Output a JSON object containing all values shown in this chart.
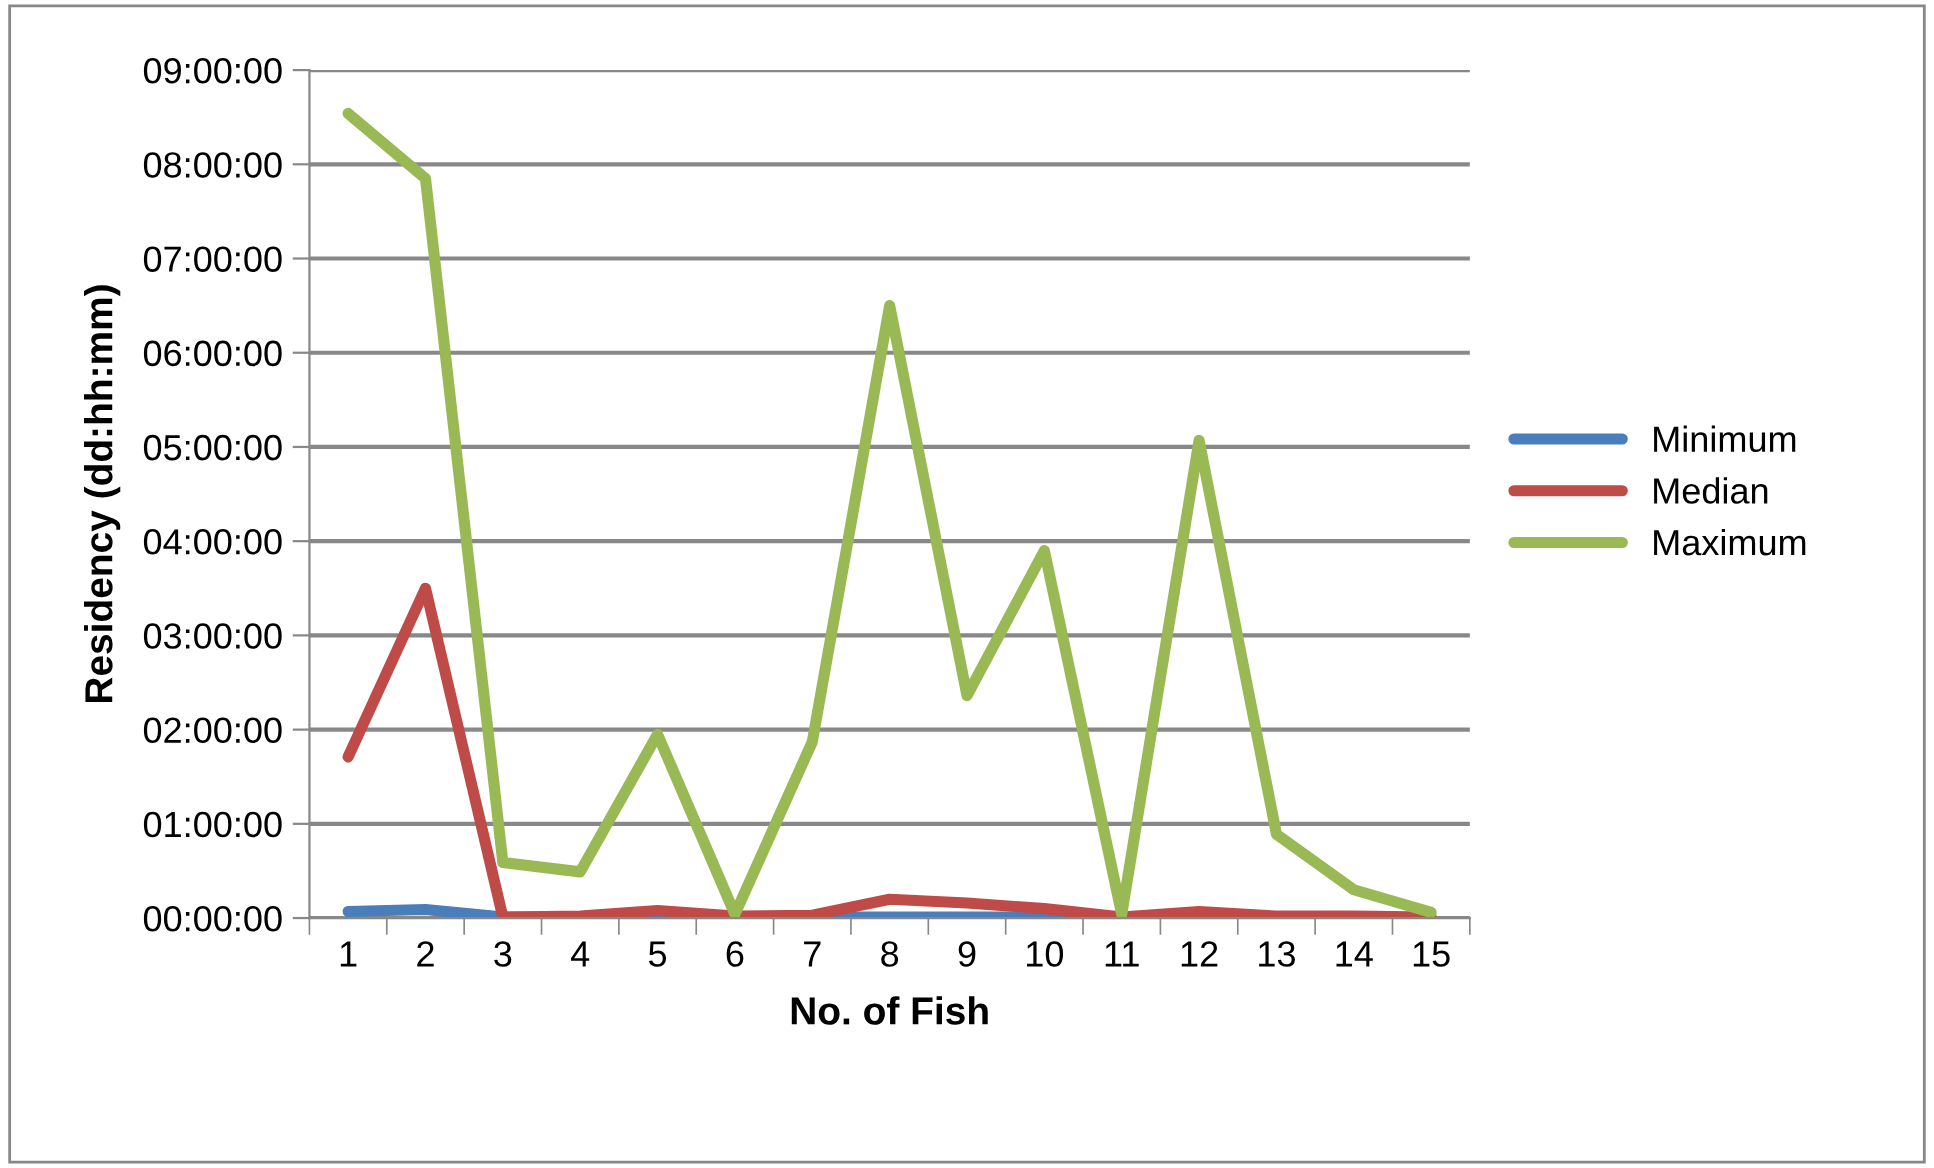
{
  "chart_data": {
    "type": "line",
    "xlabel": "No. of Fish",
    "ylabel": "Residency (dd:hh:mm)",
    "categories": [
      "1",
      "2",
      "3",
      "4",
      "5",
      "6",
      "7",
      "8",
      "9",
      "10",
      "11",
      "12",
      "13",
      "14",
      "15"
    ],
    "series": [
      {
        "name": "Minimum",
        "color": "#4a7ebb",
        "values": [
          0.07,
          0.09,
          0.01,
          0.01,
          0.01,
          0.01,
          0.01,
          0.01,
          0.01,
          0.01,
          0.01,
          null,
          null,
          null,
          null
        ]
      },
      {
        "name": "Median",
        "color": "#be4b48",
        "values": [
          1.71,
          3.5,
          0.01,
          0.02,
          0.08,
          0.02,
          0.03,
          0.2,
          0.16,
          0.1,
          0.01,
          0.07,
          0.02,
          0.02,
          0.01
        ]
      },
      {
        "name": "Maximum",
        "color": "#98b954",
        "values": [
          8.54,
          7.85,
          0.59,
          0.49,
          1.95,
          0.04,
          1.87,
          6.5,
          2.36,
          3.9,
          0.04,
          5.07,
          0.89,
          0.3,
          0.06
        ]
      }
    ],
    "ylim": [
      0,
      9
    ],
    "yticks": [
      {
        "value": 0,
        "label": "00:00:00"
      },
      {
        "value": 1,
        "label": "01:00:00"
      },
      {
        "value": 2,
        "label": "02:00:00"
      },
      {
        "value": 3,
        "label": "03:00:00"
      },
      {
        "value": 4,
        "label": "04:00:00"
      },
      {
        "value": 5,
        "label": "05:00:00"
      },
      {
        "value": 6,
        "label": "06:00:00"
      },
      {
        "value": 7,
        "label": "07:00:00"
      },
      {
        "value": 8,
        "label": "08:00:00"
      },
      {
        "value": 9,
        "label": "09:00:00"
      }
    ],
    "grid": "y",
    "legend": "right",
    "marker": "none",
    "line_style": "solid"
  }
}
